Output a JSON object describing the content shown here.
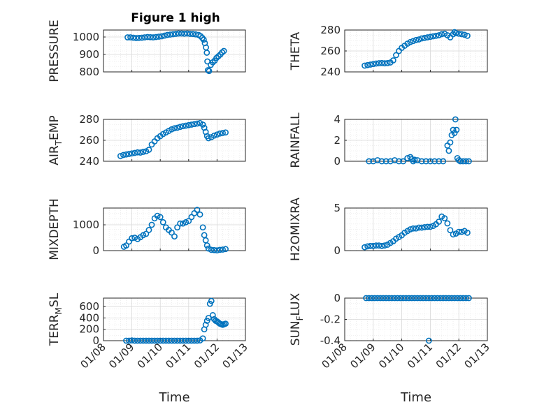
{
  "figure_title": "Figure 1 high",
  "marker_color": "#0072BD",
  "chart_data": [
    {
      "type": "scatter",
      "ylabel": "PRESSURE",
      "ylabel_sub": "",
      "ylabel_tail": "",
      "yticks": [
        800,
        900,
        1000
      ],
      "ytick_labels": [
        "800",
        "900",
        "1000"
      ],
      "ylim": [
        800,
        1040
      ],
      "xlim": [
        0,
        5
      ],
      "xtick_labels": [
        "",
        "",
        "",
        "",
        "",
        ""
      ],
      "xlabel": "",
      "grid": true,
      "x": [
        0.85,
        0.95,
        1.05,
        1.15,
        1.25,
        1.35,
        1.45,
        1.55,
        1.65,
        1.75,
        1.85,
        1.95,
        2.05,
        2.15,
        2.25,
        2.35,
        2.45,
        2.55,
        2.65,
        2.75,
        2.85,
        2.95,
        3.05,
        3.15,
        3.25,
        3.35,
        3.42,
        3.48,
        3.53,
        3.57,
        3.61,
        3.64,
        3.66,
        3.68,
        3.72,
        3.78,
        3.85,
        3.92,
        3.98,
        4.05,
        4.12,
        4.18,
        4.24
      ],
      "y": [
        998,
        998,
        996,
        994,
        995,
        996,
        998,
        1000,
        999,
        998,
        1000,
        1002,
        1004,
        1008,
        1012,
        1014,
        1016,
        1018,
        1020,
        1020,
        1019,
        1020,
        1018,
        1017,
        1015,
        1012,
        1005,
        995,
        985,
        965,
        940,
        910,
        860,
        810,
        805,
        840,
        855,
        865,
        880,
        890,
        900,
        912,
        920
      ]
    },
    {
      "type": "scatter",
      "ylabel": "THETA",
      "ylabel_sub": "",
      "ylabel_tail": "",
      "yticks": [
        240,
        260,
        280
      ],
      "ytick_labels": [
        "240",
        "260",
        "280"
      ],
      "ylim": [
        240,
        280
      ],
      "xlim": [
        0,
        5
      ],
      "xtick_labels": [
        "",
        "",
        "",
        "",
        "",
        ""
      ],
      "xlabel": "",
      "grid": true,
      "x": [
        0.7,
        0.8,
        0.9,
        1.0,
        1.1,
        1.2,
        1.3,
        1.4,
        1.5,
        1.6,
        1.7,
        1.8,
        1.9,
        2.0,
        2.1,
        2.2,
        2.3,
        2.4,
        2.5,
        2.6,
        2.7,
        2.8,
        2.9,
        3.0,
        3.1,
        3.2,
        3.3,
        3.4,
        3.5,
        3.6,
        3.7,
        3.8,
        3.85,
        3.9,
        4.0,
        4.1,
        4.2,
        4.3
      ],
      "y": [
        246,
        246.5,
        247,
        247.5,
        248,
        248.3,
        248.5,
        248.2,
        248.4,
        249,
        251,
        256,
        260,
        263,
        265,
        267,
        268.5,
        269.5,
        270.5,
        271,
        272,
        272.5,
        273,
        273.5,
        274,
        274.5,
        275,
        276,
        276.5,
        275,
        273,
        276,
        278,
        277,
        276.5,
        276,
        275.5,
        274.5
      ]
    },
    {
      "type": "scatter",
      "ylabel": "AIR",
      "ylabel_sub": "T",
      "ylabel_tail": "EMP",
      "yticks": [
        240,
        260,
        280
      ],
      "ytick_labels": [
        "240",
        "260",
        "280"
      ],
      "ylim": [
        240,
        280
      ],
      "xlim": [
        0,
        5
      ],
      "xtick_labels": [
        "",
        "",
        "",
        "",
        "",
        ""
      ],
      "xlabel": "",
      "grid": true,
      "x": [
        0.6,
        0.7,
        0.8,
        0.9,
        1.0,
        1.1,
        1.2,
        1.3,
        1.4,
        1.5,
        1.6,
        1.7,
        1.8,
        1.9,
        2.0,
        2.1,
        2.2,
        2.3,
        2.4,
        2.5,
        2.6,
        2.7,
        2.8,
        2.9,
        3.0,
        3.1,
        3.2,
        3.3,
        3.4,
        3.5,
        3.55,
        3.6,
        3.65,
        3.7,
        3.8,
        3.9,
        4.0,
        4.1,
        4.2,
        4.3
      ],
      "y": [
        245,
        246,
        246.5,
        247,
        247.5,
        248,
        248.5,
        248.3,
        249,
        249.5,
        251,
        256,
        259,
        262,
        264,
        266,
        267.5,
        269,
        270.5,
        271.5,
        272,
        272.8,
        273.5,
        274,
        274.5,
        275,
        275.5,
        276,
        276.5,
        275,
        272,
        268,
        264,
        262,
        263,
        264.5,
        265.5,
        266.5,
        267,
        267.5
      ]
    },
    {
      "type": "scatter",
      "ylabel": "RAINFALL",
      "ylabel_sub": "",
      "ylabel_tail": "",
      "yticks": [
        0,
        2,
        4
      ],
      "ytick_labels": [
        "0",
        "2",
        "4"
      ],
      "ylim": [
        0,
        4
      ],
      "xlim": [
        0,
        5
      ],
      "xtick_labels": [
        "",
        "",
        "",
        "",
        "",
        ""
      ],
      "xlabel": "",
      "grid": true,
      "x": [
        0.85,
        1.0,
        1.15,
        1.3,
        1.45,
        1.6,
        1.75,
        1.9,
        2.05,
        2.2,
        2.3,
        2.35,
        2.4,
        2.45,
        2.55,
        2.7,
        2.85,
        3.0,
        3.15,
        3.3,
        3.45,
        3.6,
        3.65,
        3.7,
        3.75,
        3.8,
        3.85,
        3.88,
        3.92,
        3.95,
        4.0,
        4.05,
        4.15,
        4.25,
        4.35
      ],
      "y": [
        0,
        0,
        0.1,
        0,
        0,
        0,
        0.1,
        0,
        0,
        0.3,
        0.4,
        0.2,
        0,
        0.15,
        0.1,
        0,
        0,
        0,
        0,
        0,
        0,
        1.5,
        1.0,
        1.8,
        2.5,
        3.0,
        2.7,
        4.0,
        3.0,
        0.3,
        0.1,
        0,
        0,
        0,
        0
      ]
    },
    {
      "type": "scatter",
      "ylabel": "MIXDEPTH",
      "ylabel_sub": "",
      "ylabel_tail": "",
      "yticks": [
        0,
        1000
      ],
      "ytick_labels": [
        "0",
        "1000"
      ],
      "ylim": [
        0,
        1650
      ],
      "xlim": [
        0,
        5
      ],
      "xtick_labels": [
        "",
        "",
        "",
        "",
        "",
        ""
      ],
      "xlabel": "",
      "grid": true,
      "x": [
        0.72,
        0.8,
        0.9,
        1.0,
        1.1,
        1.2,
        1.3,
        1.4,
        1.5,
        1.6,
        1.7,
        1.8,
        1.9,
        2.0,
        2.1,
        2.2,
        2.3,
        2.4,
        2.5,
        2.6,
        2.7,
        2.8,
        2.9,
        3.0,
        3.1,
        3.2,
        3.3,
        3.4,
        3.5,
        3.55,
        3.6,
        3.65,
        3.7,
        3.8,
        3.9,
        4.0,
        4.1,
        4.2,
        4.3
      ],
      "y": [
        150,
        200,
        350,
        480,
        500,
        450,
        520,
        600,
        650,
        800,
        1000,
        1250,
        1350,
        1300,
        1100,
        900,
        800,
        700,
        550,
        900,
        1050,
        1050,
        1100,
        1150,
        1300,
        1450,
        1580,
        1400,
        900,
        600,
        400,
        200,
        80,
        30,
        20,
        10,
        30,
        40,
        60
      ]
    },
    {
      "type": "scatter",
      "ylabel": "H2OMIXRA",
      "ylabel_sub": "",
      "ylabel_tail": "",
      "yticks": [
        0,
        5
      ],
      "ytick_labels": [
        "0",
        "5"
      ],
      "ylim": [
        0,
        5
      ],
      "xlim": [
        0,
        5
      ],
      "xtick_labels": [
        "",
        "",
        "",
        "",
        "",
        ""
      ],
      "xlabel": "",
      "grid": true,
      "x": [
        0.7,
        0.8,
        0.9,
        1.0,
        1.1,
        1.2,
        1.3,
        1.4,
        1.5,
        1.6,
        1.7,
        1.8,
        1.9,
        2.0,
        2.1,
        2.2,
        2.3,
        2.4,
        2.5,
        2.6,
        2.7,
        2.8,
        2.9,
        3.0,
        3.1,
        3.2,
        3.3,
        3.4,
        3.5,
        3.6,
        3.7,
        3.8,
        3.9,
        4.0,
        4.1,
        4.2,
        4.3
      ],
      "y": [
        0.4,
        0.5,
        0.55,
        0.55,
        0.6,
        0.6,
        0.55,
        0.6,
        0.7,
        0.9,
        1.1,
        1.4,
        1.6,
        1.8,
        2.1,
        2.3,
        2.5,
        2.6,
        2.6,
        2.7,
        2.7,
        2.75,
        2.8,
        2.8,
        2.9,
        3.1,
        3.4,
        4.0,
        3.8,
        3.2,
        2.4,
        1.9,
        2.0,
        2.2,
        2.2,
        2.3,
        2.1
      ]
    },
    {
      "type": "scatter",
      "ylabel": "TERR",
      "ylabel_sub": "M",
      "ylabel_tail": "SL",
      "yticks": [
        0,
        200,
        400,
        600
      ],
      "ytick_labels": [
        "0",
        "200",
        "400",
        "600"
      ],
      "ylim": [
        0,
        750
      ],
      "xlim": [
        0,
        5
      ],
      "xtick_labels": [
        "01/08",
        "01/09",
        "01/10",
        "01/11",
        "01/12",
        "01/13"
      ],
      "xlabel": "Time",
      "grid": true,
      "x": [
        0.8,
        0.9,
        1.0,
        1.1,
        1.2,
        1.3,
        1.4,
        1.5,
        1.6,
        1.7,
        1.8,
        1.9,
        2.0,
        2.1,
        2.2,
        2.3,
        2.4,
        2.5,
        2.6,
        2.7,
        2.8,
        2.9,
        3.0,
        3.1,
        3.2,
        3.3,
        3.4,
        3.5,
        3.55,
        3.6,
        3.65,
        3.7,
        3.75,
        3.8,
        3.85,
        3.9,
        3.95,
        4.0,
        4.05,
        4.1,
        4.15,
        4.2,
        4.25,
        4.3
      ],
      "y": [
        0,
        0,
        5,
        0,
        0,
        0,
        0,
        0,
        0,
        0,
        0,
        0,
        0,
        0,
        0,
        0,
        0,
        0,
        0,
        0,
        0,
        0,
        0,
        0,
        0,
        0,
        5,
        40,
        200,
        280,
        350,
        400,
        650,
        700,
        450,
        380,
        350,
        340,
        320,
        300,
        290,
        280,
        290,
        300
      ]
    },
    {
      "type": "scatter",
      "ylabel": "SUN",
      "ylabel_sub": "F",
      "ylabel_tail": "LUX",
      "yticks": [
        -0.4,
        -0.2,
        0
      ],
      "ytick_labels": [
        "-0.4",
        "-0.2",
        "0"
      ],
      "ylim": [
        -0.4,
        0
      ],
      "xlim": [
        0,
        5
      ],
      "xtick_labels": [
        "01/08",
        "01/09",
        "01/10",
        "01/11",
        "01/12",
        "01/13"
      ],
      "xlabel": "Time",
      "grid": true,
      "x": [
        0.75,
        0.85,
        0.95,
        1.05,
        1.15,
        1.25,
        1.35,
        1.45,
        1.55,
        1.65,
        1.75,
        1.85,
        1.95,
        2.05,
        2.15,
        2.25,
        2.35,
        2.45,
        2.55,
        2.65,
        2.75,
        2.85,
        2.95,
        3.05,
        3.15,
        3.25,
        3.35,
        3.45,
        3.55,
        3.65,
        3.75,
        3.85,
        3.95,
        4.05,
        4.15,
        4.25,
        4.35,
        2.95
      ],
      "y": [
        0,
        0,
        0,
        0,
        0,
        0,
        0,
        0,
        0,
        0,
        0,
        0,
        0,
        0,
        0,
        0,
        0,
        0,
        0,
        0,
        0,
        0,
        0,
        0,
        0,
        0,
        0,
        0,
        0,
        0,
        0,
        0,
        0,
        0,
        0,
        0,
        0,
        -0.4
      ]
    }
  ]
}
